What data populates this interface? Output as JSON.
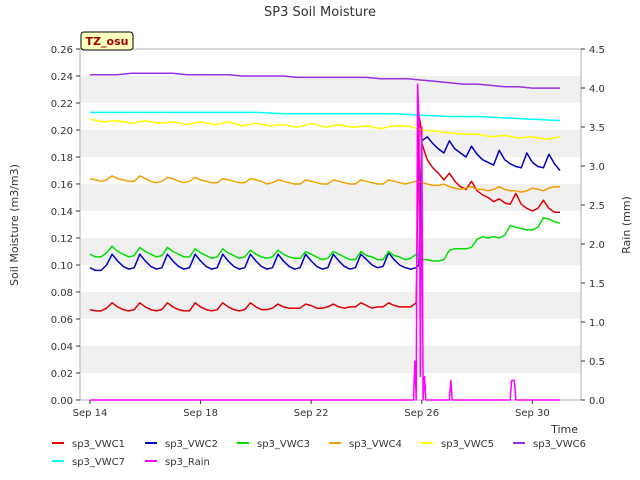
{
  "chart_data": {
    "type": "line",
    "title": "SP3 Soil Moisture",
    "xlabel": "Time",
    "ylabel": "Soil Moisture (m3/m3)",
    "y2label": "Rain (mm)",
    "badge": "TZ_osu",
    "xlim": [
      0,
      17
    ],
    "ylim": [
      0,
      0.26
    ],
    "y2lim": [
      0,
      4.5
    ],
    "x_ticks": [
      {
        "x": 0,
        "label": "Sep 14"
      },
      {
        "x": 4,
        "label": "Sep 18"
      },
      {
        "x": 8,
        "label": "Sep 22"
      },
      {
        "x": 12,
        "label": "Sep 26"
      },
      {
        "x": 16,
        "label": "Sep 30"
      }
    ],
    "y_ticks": [
      "0.00",
      "0.02",
      "0.04",
      "0.06",
      "0.08",
      "0.10",
      "0.12",
      "0.14",
      "0.16",
      "0.18",
      "0.20",
      "0.22",
      "0.24",
      "0.26"
    ],
    "y2_ticks": [
      "0.0",
      "0.5",
      "1.0",
      "1.5",
      "2.0",
      "2.5",
      "3.0",
      "3.5",
      "4.0",
      "4.5"
    ],
    "grid": "horizontal bands",
    "legend_position": "bottom",
    "series": [
      {
        "name": "sp3_VWC1",
        "color": "#e00000",
        "axis": "left",
        "x": [
          0.0,
          0.2,
          0.4,
          0.6,
          0.8,
          1.0,
          1.2,
          1.4,
          1.6,
          1.8,
          2.0,
          2.2,
          2.4,
          2.6,
          2.8,
          3.0,
          3.2,
          3.4,
          3.6,
          3.8,
          4.0,
          4.2,
          4.4,
          4.6,
          4.8,
          5.0,
          5.2,
          5.4,
          5.6,
          5.8,
          6.0,
          6.2,
          6.4,
          6.6,
          6.8,
          7.0,
          7.2,
          7.4,
          7.6,
          7.8,
          8.0,
          8.2,
          8.4,
          8.6,
          8.8,
          9.0,
          9.2,
          9.4,
          9.6,
          9.8,
          10.0,
          10.2,
          10.4,
          10.6,
          10.8,
          11.0,
          11.2,
          11.4,
          11.6,
          11.8,
          11.9,
          11.95,
          12.0,
          12.2,
          12.4,
          12.6,
          12.8,
          13.0,
          13.2,
          13.4,
          13.6,
          13.8,
          14.0,
          14.2,
          14.4,
          14.6,
          14.8,
          15.0,
          15.2,
          15.4,
          15.6,
          15.8,
          16.0,
          16.2,
          16.4,
          16.6,
          16.8,
          17.0
        ],
        "y": [
          0.067,
          0.066,
          0.066,
          0.068,
          0.072,
          0.069,
          0.067,
          0.066,
          0.067,
          0.072,
          0.069,
          0.067,
          0.066,
          0.067,
          0.072,
          0.069,
          0.067,
          0.066,
          0.066,
          0.072,
          0.069,
          0.067,
          0.066,
          0.067,
          0.072,
          0.069,
          0.067,
          0.066,
          0.067,
          0.072,
          0.069,
          0.067,
          0.067,
          0.068,
          0.071,
          0.069,
          0.068,
          0.068,
          0.068,
          0.071,
          0.07,
          0.068,
          0.068,
          0.069,
          0.071,
          0.069,
          0.068,
          0.069,
          0.069,
          0.072,
          0.07,
          0.068,
          0.069,
          0.069,
          0.072,
          0.07,
          0.069,
          0.069,
          0.069,
          0.072,
          0.21,
          0.205,
          0.19,
          0.178,
          0.172,
          0.168,
          0.163,
          0.168,
          0.162,
          0.158,
          0.156,
          0.162,
          0.155,
          0.152,
          0.15,
          0.147,
          0.149,
          0.146,
          0.145,
          0.153,
          0.145,
          0.142,
          0.14,
          0.142,
          0.148,
          0.142,
          0.139,
          0.139
        ]
      },
      {
        "name": "sp3_VWC2",
        "color": "#0000c0",
        "axis": "left",
        "x": [
          0.0,
          0.2,
          0.4,
          0.6,
          0.8,
          1.0,
          1.2,
          1.4,
          1.6,
          1.8,
          2.0,
          2.2,
          2.4,
          2.6,
          2.8,
          3.0,
          3.2,
          3.4,
          3.6,
          3.8,
          4.0,
          4.2,
          4.4,
          4.6,
          4.8,
          5.0,
          5.2,
          5.4,
          5.6,
          5.8,
          6.0,
          6.2,
          6.4,
          6.6,
          6.8,
          7.0,
          7.2,
          7.4,
          7.6,
          7.8,
          8.0,
          8.2,
          8.4,
          8.6,
          8.8,
          9.0,
          9.2,
          9.4,
          9.6,
          9.8,
          10.0,
          10.2,
          10.4,
          10.6,
          10.8,
          11.0,
          11.2,
          11.4,
          11.6,
          11.8,
          11.9,
          11.95,
          12.0,
          12.2,
          12.4,
          12.6,
          12.8,
          13.0,
          13.2,
          13.4,
          13.6,
          13.8,
          14.0,
          14.2,
          14.4,
          14.6,
          14.8,
          15.0,
          15.2,
          15.4,
          15.6,
          15.8,
          16.0,
          16.2,
          16.4,
          16.6,
          16.8,
          17.0
        ],
        "y": [
          0.098,
          0.096,
          0.096,
          0.1,
          0.108,
          0.103,
          0.099,
          0.097,
          0.098,
          0.108,
          0.103,
          0.099,
          0.097,
          0.098,
          0.108,
          0.103,
          0.099,
          0.097,
          0.098,
          0.108,
          0.103,
          0.099,
          0.097,
          0.098,
          0.108,
          0.103,
          0.099,
          0.097,
          0.098,
          0.108,
          0.103,
          0.099,
          0.097,
          0.098,
          0.108,
          0.103,
          0.099,
          0.097,
          0.098,
          0.108,
          0.103,
          0.099,
          0.097,
          0.098,
          0.108,
          0.103,
          0.099,
          0.097,
          0.098,
          0.108,
          0.104,
          0.1,
          0.098,
          0.099,
          0.109,
          0.104,
          0.1,
          0.098,
          0.097,
          0.098,
          0.1,
          0.15,
          0.192,
          0.195,
          0.19,
          0.186,
          0.183,
          0.192,
          0.186,
          0.183,
          0.18,
          0.188,
          0.182,
          0.178,
          0.176,
          0.174,
          0.185,
          0.178,
          0.175,
          0.173,
          0.172,
          0.183,
          0.176,
          0.173,
          0.172,
          0.182,
          0.175,
          0.17
        ]
      },
      {
        "name": "sp3_VWC3",
        "color": "#00e000",
        "axis": "left",
        "x": [
          0.0,
          0.2,
          0.4,
          0.6,
          0.8,
          1.0,
          1.2,
          1.4,
          1.6,
          1.8,
          2.0,
          2.2,
          2.4,
          2.6,
          2.8,
          3.0,
          3.2,
          3.4,
          3.6,
          3.8,
          4.0,
          4.2,
          4.4,
          4.6,
          4.8,
          5.0,
          5.2,
          5.4,
          5.6,
          5.8,
          6.0,
          6.2,
          6.4,
          6.6,
          6.8,
          7.0,
          7.2,
          7.4,
          7.6,
          7.8,
          8.0,
          8.2,
          8.4,
          8.6,
          8.8,
          9.0,
          9.2,
          9.4,
          9.6,
          9.8,
          10.0,
          10.2,
          10.4,
          10.6,
          10.8,
          11.0,
          11.2,
          11.4,
          11.6,
          11.8,
          12.0,
          12.2,
          12.4,
          12.6,
          12.8,
          13.0,
          13.2,
          13.4,
          13.6,
          13.8,
          14.0,
          14.2,
          14.4,
          14.6,
          14.8,
          15.0,
          15.2,
          15.4,
          15.6,
          15.8,
          16.0,
          16.2,
          16.4,
          16.6,
          16.8,
          17.0
        ],
        "y": [
          0.108,
          0.106,
          0.106,
          0.109,
          0.114,
          0.11,
          0.108,
          0.106,
          0.107,
          0.113,
          0.11,
          0.108,
          0.106,
          0.107,
          0.113,
          0.11,
          0.108,
          0.106,
          0.106,
          0.112,
          0.109,
          0.107,
          0.105,
          0.106,
          0.112,
          0.109,
          0.107,
          0.105,
          0.106,
          0.111,
          0.108,
          0.106,
          0.105,
          0.106,
          0.111,
          0.108,
          0.106,
          0.105,
          0.105,
          0.11,
          0.108,
          0.106,
          0.104,
          0.105,
          0.11,
          0.108,
          0.106,
          0.104,
          0.104,
          0.11,
          0.107,
          0.106,
          0.104,
          0.104,
          0.11,
          0.107,
          0.106,
          0.104,
          0.105,
          0.108,
          0.104,
          0.104,
          0.103,
          0.103,
          0.104,
          0.111,
          0.112,
          0.112,
          0.112,
          0.113,
          0.119,
          0.121,
          0.12,
          0.121,
          0.12,
          0.122,
          0.129,
          0.128,
          0.127,
          0.126,
          0.126,
          0.128,
          0.135,
          0.134,
          0.132,
          0.131
        ]
      },
      {
        "name": "sp3_VWC4",
        "color": "#f0a000",
        "axis": "left",
        "x": [
          0.0,
          0.2,
          0.4,
          0.6,
          0.8,
          1.0,
          1.2,
          1.4,
          1.6,
          1.8,
          2.0,
          2.2,
          2.4,
          2.6,
          2.8,
          3.0,
          3.2,
          3.4,
          3.6,
          3.8,
          4.0,
          4.2,
          4.4,
          4.6,
          4.8,
          5.0,
          5.2,
          5.4,
          5.6,
          5.8,
          6.0,
          6.2,
          6.4,
          6.6,
          6.8,
          7.0,
          7.2,
          7.4,
          7.6,
          7.8,
          8.0,
          8.2,
          8.4,
          8.6,
          8.8,
          9.0,
          9.2,
          9.4,
          9.6,
          9.8,
          10.0,
          10.2,
          10.4,
          10.6,
          10.8,
          11.0,
          11.2,
          11.4,
          11.6,
          11.8,
          12.0,
          12.2,
          12.4,
          12.6,
          12.8,
          13.0,
          13.2,
          13.4,
          13.6,
          13.8,
          14.0,
          14.2,
          14.4,
          14.6,
          14.8,
          15.0,
          15.2,
          15.4,
          15.6,
          15.8,
          16.0,
          16.2,
          16.4,
          16.6,
          16.8,
          17.0
        ],
        "y": [
          0.164,
          0.163,
          0.162,
          0.163,
          0.166,
          0.164,
          0.163,
          0.162,
          0.162,
          0.166,
          0.164,
          0.162,
          0.161,
          0.162,
          0.165,
          0.164,
          0.162,
          0.161,
          0.162,
          0.165,
          0.163,
          0.162,
          0.161,
          0.161,
          0.164,
          0.163,
          0.162,
          0.161,
          0.161,
          0.164,
          0.163,
          0.162,
          0.16,
          0.161,
          0.163,
          0.162,
          0.161,
          0.16,
          0.16,
          0.163,
          0.162,
          0.161,
          0.16,
          0.16,
          0.163,
          0.162,
          0.161,
          0.16,
          0.16,
          0.163,
          0.162,
          0.161,
          0.16,
          0.16,
          0.163,
          0.162,
          0.161,
          0.16,
          0.161,
          0.162,
          0.161,
          0.16,
          0.159,
          0.159,
          0.16,
          0.158,
          0.157,
          0.156,
          0.157,
          0.158,
          0.156,
          0.156,
          0.155,
          0.156,
          0.158,
          0.156,
          0.155,
          0.155,
          0.154,
          0.155,
          0.157,
          0.156,
          0.155,
          0.157,
          0.158,
          0.158
        ]
      },
      {
        "name": "sp3_VWC5",
        "color": "#ffff00",
        "axis": "left",
        "x": [
          0.0,
          0.5,
          1.0,
          1.5,
          2.0,
          2.5,
          3.0,
          3.5,
          4.0,
          4.5,
          5.0,
          5.5,
          6.0,
          6.5,
          7.0,
          7.5,
          8.0,
          8.5,
          9.0,
          9.5,
          10.0,
          10.5,
          11.0,
          11.5,
          12.0,
          12.5,
          13.0,
          13.5,
          14.0,
          14.5,
          15.0,
          15.5,
          16.0,
          16.5,
          17.0
        ],
        "y": [
          0.208,
          0.206,
          0.207,
          0.205,
          0.207,
          0.205,
          0.206,
          0.204,
          0.206,
          0.204,
          0.206,
          0.203,
          0.205,
          0.203,
          0.204,
          0.202,
          0.205,
          0.202,
          0.204,
          0.202,
          0.203,
          0.201,
          0.203,
          0.203,
          0.2,
          0.199,
          0.198,
          0.197,
          0.197,
          0.195,
          0.196,
          0.194,
          0.195,
          0.193,
          0.195
        ]
      },
      {
        "name": "sp3_VWC6",
        "color": "#9a30e0",
        "axis": "left",
        "x": [
          0.0,
          0.5,
          1.0,
          1.5,
          2.0,
          2.5,
          3.0,
          3.5,
          4.0,
          4.5,
          5.0,
          5.5,
          6.0,
          6.5,
          7.0,
          7.5,
          8.0,
          8.5,
          9.0,
          9.5,
          10.0,
          10.5,
          11.0,
          11.5,
          12.0,
          12.5,
          13.0,
          13.5,
          14.0,
          14.5,
          15.0,
          15.5,
          16.0,
          16.5,
          17.0
        ],
        "y": [
          0.241,
          0.241,
          0.241,
          0.242,
          0.242,
          0.242,
          0.242,
          0.241,
          0.241,
          0.241,
          0.241,
          0.24,
          0.24,
          0.24,
          0.24,
          0.239,
          0.239,
          0.239,
          0.239,
          0.239,
          0.239,
          0.238,
          0.238,
          0.238,
          0.237,
          0.236,
          0.235,
          0.234,
          0.234,
          0.233,
          0.232,
          0.232,
          0.231,
          0.231,
          0.231
        ]
      },
      {
        "name": "sp3_VWC7",
        "color": "#00ffff",
        "axis": "left",
        "x": [
          0.0,
          1.0,
          2.0,
          3.0,
          4.0,
          5.0,
          6.0,
          7.0,
          8.0,
          9.0,
          10.0,
          11.0,
          12.0,
          13.0,
          14.0,
          15.0,
          16.0,
          17.0
        ],
        "y": [
          0.213,
          0.213,
          0.213,
          0.213,
          0.213,
          0.213,
          0.213,
          0.212,
          0.212,
          0.212,
          0.212,
          0.212,
          0.211,
          0.21,
          0.21,
          0.209,
          0.208,
          0.207
        ]
      },
      {
        "name": "sp3_Rain",
        "color": "#ff00ff",
        "axis": "right",
        "x": [
          0.0,
          11.7,
          11.75,
          11.8,
          11.85,
          11.9,
          11.95,
          12.0,
          12.05,
          12.1,
          12.15,
          12.2,
          13.0,
          13.05,
          13.1,
          15.2,
          15.25,
          15.3,
          15.35,
          15.4,
          17.0
        ],
        "y": [
          0.0,
          0.0,
          0.5,
          0.0,
          4.05,
          3.6,
          0.3,
          3.5,
          0.0,
          0.3,
          0.0,
          0.0,
          0.0,
          0.25,
          0.0,
          0.0,
          0.25,
          0.25,
          0.25,
          0.0,
          0.0
        ]
      }
    ]
  }
}
